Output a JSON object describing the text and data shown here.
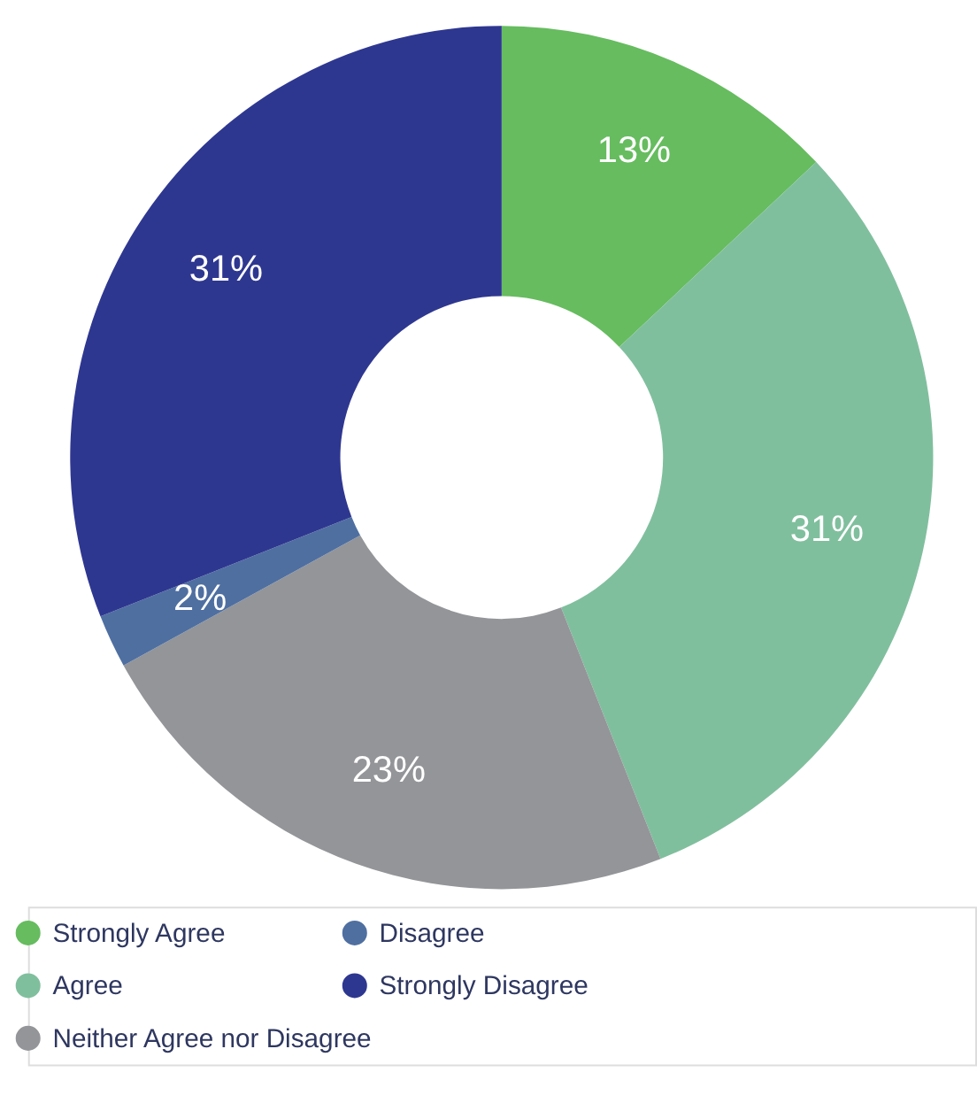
{
  "chart_data": {
    "type": "donut",
    "categories": [
      "Strongly Agree",
      "Agree",
      "Neither Agree nor Disagree",
      "Disagree",
      "Strongly Disagree"
    ],
    "values": [
      13,
      31,
      23,
      2,
      31
    ],
    "colors": [
      "#66bc5f",
      "#80bf9e",
      "#949598",
      "#4f6fa1",
      "#2e3790"
    ],
    "data_labels": true,
    "value_labels": [
      "13%",
      "31%",
      "23%",
      "2%",
      "31%"
    ],
    "legend": "bottom"
  }
}
